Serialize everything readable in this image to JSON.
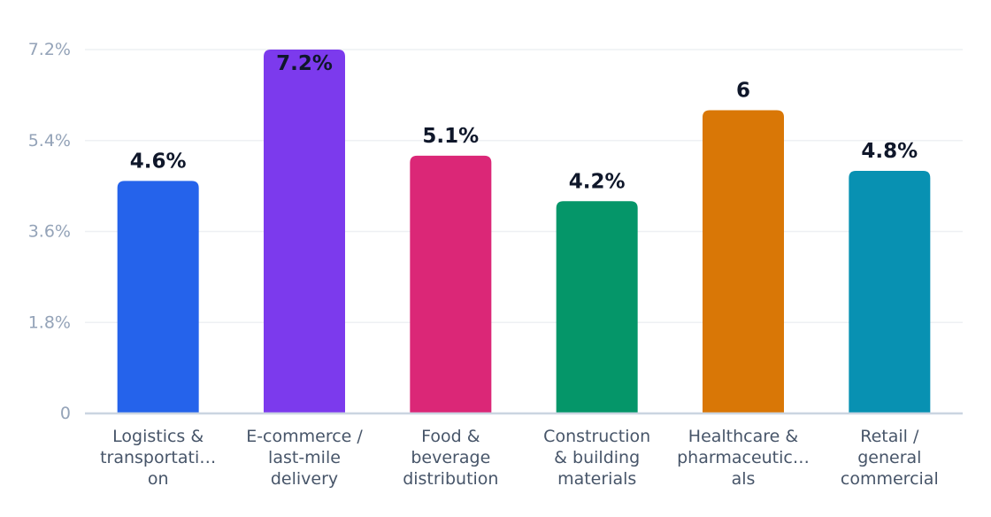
{
  "chart_data": {
    "type": "bar",
    "categories": [
      [
        "Logistics &",
        "transportati…",
        "on"
      ],
      [
        "E-commerce /",
        "last-mile",
        "delivery"
      ],
      [
        "Food &",
        "beverage",
        "distribution"
      ],
      [
        "Construction",
        "& building",
        "materials"
      ],
      [
        "Healthcare &",
        "pharmaceutic…",
        "als"
      ],
      [
        "Retail /",
        "general",
        "commercial"
      ]
    ],
    "values": [
      4.6,
      7.2,
      5.1,
      4.2,
      6.0,
      4.8
    ],
    "value_labels": [
      "4.6%",
      "7.2%",
      "5.1%",
      "4.2%",
      "6",
      "4.8%"
    ],
    "colors": [
      "#2563eb",
      "#7c3aed",
      "#db2777",
      "#059669",
      "#d97706",
      "#0891b2"
    ],
    "yticks": [
      0,
      1.8,
      3.6,
      5.4,
      7.2
    ],
    "ytick_labels": [
      "0",
      "1.8%",
      "3.6%",
      "5.4%",
      "7.2%"
    ],
    "ylim": [
      0,
      7.2
    ],
    "grid": true,
    "legend": "none"
  }
}
